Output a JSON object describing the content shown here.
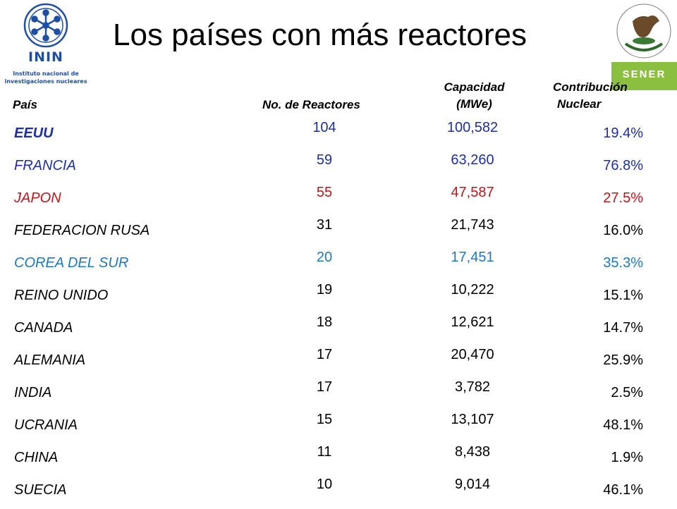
{
  "title": "Los países con más reactores",
  "logos": {
    "left": {
      "name": "ININ",
      "subtitle_line1": "Instituto nacional de",
      "subtitle_line2": "investigaciones nucleares"
    },
    "right": {
      "emblem_text": "ESTADOS UNIDOS MEXICANOS",
      "name": "SENER"
    }
  },
  "headers": {
    "country": "País",
    "reactors": "No. de Reactores",
    "capacity_line1": "Capacidad",
    "capacity_line2": "(MWe)",
    "contribution_line1": "Contribución",
    "contribution_line2": "Nuclear"
  },
  "colors": {
    "blue_dark": "#1d2fa6",
    "red": "#c0161b",
    "blue_light": "#1f77c4",
    "black": "#000000",
    "green": "#8bbf3f"
  },
  "rows": [
    {
      "country": "EEUU",
      "reactors": "104",
      "capacity": "100,582",
      "contribution": "19.4%",
      "color": "#1d2fa6",
      "country_bold": true
    },
    {
      "country": "FRANCIA",
      "reactors": "59",
      "capacity": "63,260",
      "contribution": "76.8%",
      "color": "#1d2fa6",
      "country_bold": false
    },
    {
      "country": "JAPON",
      "reactors": "55",
      "capacity": "47,587",
      "contribution": "27.5%",
      "color": "#c0161b",
      "country_bold": false
    },
    {
      "country": "FEDERACION RUSA",
      "reactors": "31",
      "capacity": "21,743",
      "contribution": "16.0%",
      "color": "#000000",
      "country_bold": false
    },
    {
      "country": "COREA DEL SUR",
      "reactors": "20",
      "capacity": "17,451",
      "contribution": "35.3%",
      "color": "#1f77c4",
      "country_bold": false
    },
    {
      "country": "REINO UNIDO",
      "reactors": "19",
      "capacity": "10,222",
      "contribution": "15.1%",
      "color": "#000000",
      "country_bold": false
    },
    {
      "country": "CANADA",
      "reactors": "18",
      "capacity": "12,621",
      "contribution": "14.7%",
      "color": "#000000",
      "country_bold": false
    },
    {
      "country": "ALEMANIA",
      "reactors": "17",
      "capacity": "20,470",
      "contribution": "25.9%",
      "color": "#000000",
      "country_bold": false
    },
    {
      "country": "INDIA",
      "reactors": "17",
      "capacity": "3,782",
      "contribution": "2.5%",
      "color": "#000000",
      "country_bold": false
    },
    {
      "country": "UCRANIA",
      "reactors": "15",
      "capacity": "13,107",
      "contribution": "48.1%",
      "color": "#000000",
      "country_bold": false
    },
    {
      "country": "CHINA",
      "reactors": "11",
      "capacity": "8,438",
      "contribution": "1.9%",
      "color": "#000000",
      "country_bold": false
    },
    {
      "country": "SUECIA",
      "reactors": "10",
      "capacity": "9,014",
      "contribution": "46.1%",
      "color": "#000000",
      "country_bold": false
    }
  ]
}
